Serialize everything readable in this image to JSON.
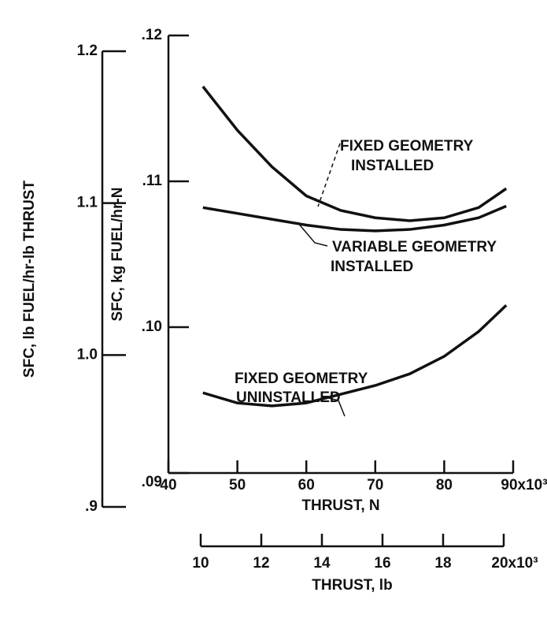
{
  "chart_data": {
    "type": "line",
    "xlabel": "THRUST, N",
    "ylabel": "SFC, kg FUEL/hr-N",
    "xlim": [
      40,
      90
    ],
    "xticks": [
      40,
      50,
      60,
      70,
      80,
      {
        "value": 90,
        "label": "90x10³"
      }
    ],
    "ylim": [
      0.09,
      0.12
    ],
    "yticks": [
      {
        "value": 0.09,
        "label": ".09"
      },
      {
        "value": 0.1,
        "label": ".10"
      },
      {
        "value": 0.11,
        "label": ".11"
      },
      {
        "value": 0.12,
        "label": ".12"
      }
    ],
    "y2label": "SFC, lb FUEL/hr-lb THRUST",
    "y2lim": [
      0.9,
      1.2
    ],
    "y2ticks": [
      {
        "value": 0.9,
        "label": ".9"
      },
      {
        "value": 1.0,
        "label": "1.0"
      },
      1.1,
      1.2
    ],
    "x2label": "THRUST, lb",
    "x2lim": [
      10,
      20
    ],
    "x2ticks": [
      10,
      12,
      14,
      16,
      18,
      {
        "value": 20,
        "label": "20x10³"
      }
    ],
    "x": [
      45,
      50,
      55,
      60,
      65,
      70,
      75,
      80,
      85,
      89
    ],
    "series": [
      {
        "name": [
          "FIXED GEOMETRY",
          "INSTALLED"
        ],
        "color": "#111111",
        "values": [
          0.1165,
          0.1135,
          0.111,
          0.109,
          0.108,
          0.1075,
          0.1073,
          0.1075,
          0.1082,
          0.1095
        ]
      },
      {
        "name": [
          "VARIABLE GEOMETRY",
          "INSTALLED"
        ],
        "color": "#111111",
        "values": [
          0.1082,
          0.1078,
          0.1074,
          0.107,
          0.1067,
          0.1066,
          0.1067,
          0.107,
          0.1075,
          0.1083
        ]
      },
      {
        "name": [
          "FIXED GEOMETRY",
          "UNINSTALLED"
        ],
        "color": "#111111",
        "values": [
          0.0955,
          0.0948,
          0.0946,
          0.0948,
          0.0954,
          0.096,
          0.0968,
          0.098,
          0.0997,
          0.1015
        ]
      }
    ]
  }
}
